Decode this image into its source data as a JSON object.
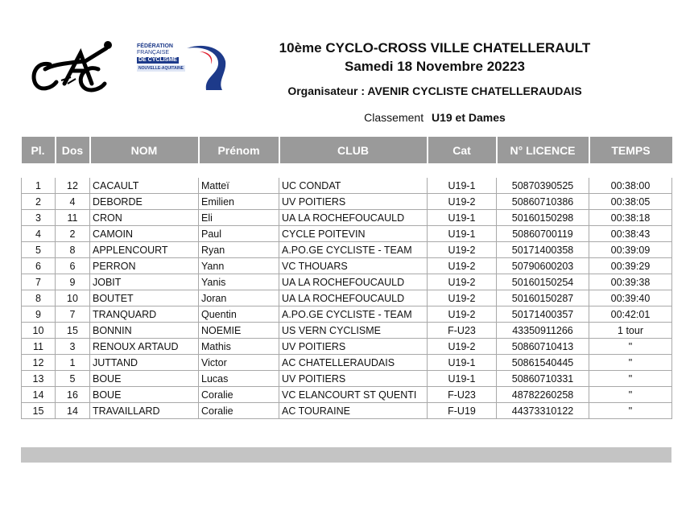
{
  "event": {
    "title": "10ème CYCLO-CROSS VILLE CHATELLERAULT",
    "date": "Samedi 18 Novembre 20223",
    "organiser": "Organisateur : AVENIR CYCLISTE CHATELLERAUDAIS",
    "classement_label": "Classement",
    "classement_category": "U19 et Dames"
  },
  "logos": {
    "club": {
      "name": "club-logo-cac"
    },
    "federation": {
      "line1": "FÉDÉRATION",
      "line2": "FRANÇAISE",
      "line3": "DE CYCLISME",
      "line4": "NOUVELLE-AQUITAINE",
      "colors": {
        "blue": "#1d3a8a",
        "red": "#e02030"
      }
    }
  },
  "table": {
    "headers": [
      "Pl.",
      "Dos",
      "NOM",
      "Prénom",
      "CLUB",
      "Cat",
      "N° LICENCE",
      "TEMPS"
    ],
    "rows": [
      [
        "1",
        "12",
        "CACAULT",
        "Matteï",
        "UC CONDAT",
        "U19-1",
        "50870390525",
        "00:38:00"
      ],
      [
        "2",
        "4",
        "DEBORDE",
        "Emilien",
        "UV POITIERS",
        "U19-2",
        "50860710386",
        "00:38:05"
      ],
      [
        "3",
        "11",
        "CRON",
        "Eli",
        "UA LA ROCHEFOUCAULD",
        "U19-1",
        "50160150298",
        "00:38:18"
      ],
      [
        "4",
        "2",
        "CAMOIN",
        "Paul",
        "CYCLE POITEVIN",
        "U19-1",
        "50860700119",
        "00:38:43"
      ],
      [
        "5",
        "8",
        "APPLENCOURT",
        "Ryan",
        "A.PO.GE CYCLISTE - TEAM",
        "U19-2",
        "50171400358",
        "00:39:09"
      ],
      [
        "6",
        "6",
        "PERRON",
        "Yann",
        "VC THOUARS",
        "U19-2",
        "50790600203",
        "00:39:29"
      ],
      [
        "7",
        "9",
        "JOBIT",
        "Yanis",
        "UA LA ROCHEFOUCAULD",
        "U19-2",
        "50160150254",
        "00:39:38"
      ],
      [
        "8",
        "10",
        "BOUTET",
        "Joran",
        "UA LA ROCHEFOUCAULD",
        "U19-2",
        "50160150287",
        "00:39:40"
      ],
      [
        "9",
        "7",
        "TRANQUARD",
        "Quentin",
        "A.PO.GE CYCLISTE - TEAM",
        "U19-2",
        "50171400357",
        "00:42:01"
      ],
      [
        "10",
        "15",
        "BONNIN",
        "NOEMIE",
        "US VERN CYCLISME",
        "F-U23",
        "43350911266",
        "1 tour"
      ],
      [
        "11",
        "3",
        "RENOUX ARTAUD",
        "Mathis",
        "UV POITIERS",
        "U19-2",
        "50860710413",
        "\""
      ],
      [
        "12",
        "1",
        "JUTTAND",
        "Victor",
        "AC CHATELLERAUDAIS",
        "U19-1",
        "50861540445",
        "\""
      ],
      [
        "13",
        "5",
        "BOUE",
        "Lucas",
        "UV POITIERS",
        "U19-1",
        "50860710331",
        "\""
      ],
      [
        "14",
        "16",
        "BOUE",
        "Coralie",
        "VC ELANCOURT ST QUENTI",
        "F-U23",
        "48782260258",
        "\""
      ],
      [
        "15",
        "14",
        "TRAVAILLARD",
        "Coralie",
        "AC TOURAINE",
        "F-U19",
        "44373310122",
        "\""
      ]
    ]
  }
}
